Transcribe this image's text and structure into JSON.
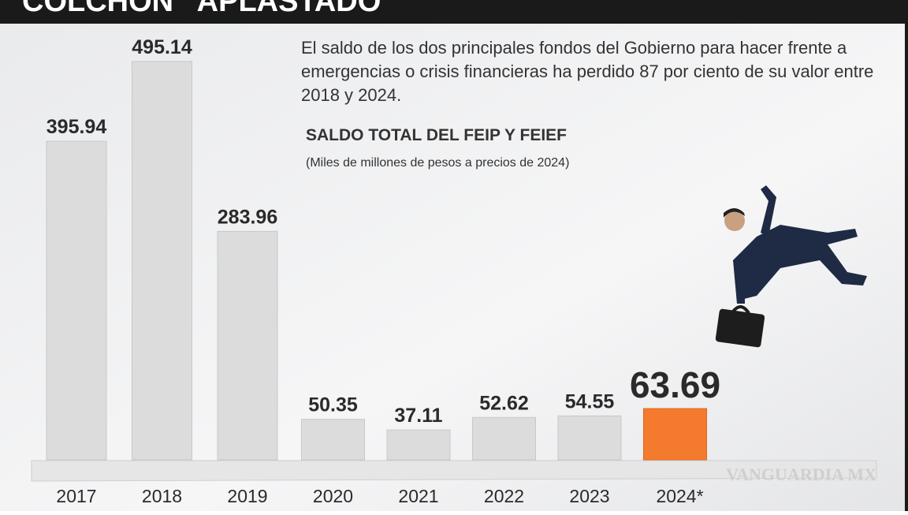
{
  "chart_data": {
    "type": "bar",
    "title": "COLCHÓN “APLASTADO”",
    "description": "El saldo de los dos principales fondos del Gobierno para hacer frente a emergencias o crisis financieras ha perdido 87 por ciento de su valor entre 2018 y 2024.",
    "subtitle": "SALDO TOTAL DEL FEIP Y FEIEF",
    "note": "(Miles de millones de pesos a precios de 2024)",
    "categories": [
      "2017",
      "2018",
      "2019",
      "2020",
      "2021",
      "2022",
      "2023",
      "2024*"
    ],
    "values": [
      395.94,
      495.14,
      283.96,
      50.35,
      37.11,
      52.62,
      54.55,
      63.69
    ],
    "colors": [
      "#dcdcdc",
      "#dcdcdc",
      "#dcdcdc",
      "#dcdcdc",
      "#dcdcdc",
      "#dcdcdc",
      "#dcdcdc",
      "#f47b2e"
    ],
    "watermark": "VANGUARDIA MX"
  }
}
